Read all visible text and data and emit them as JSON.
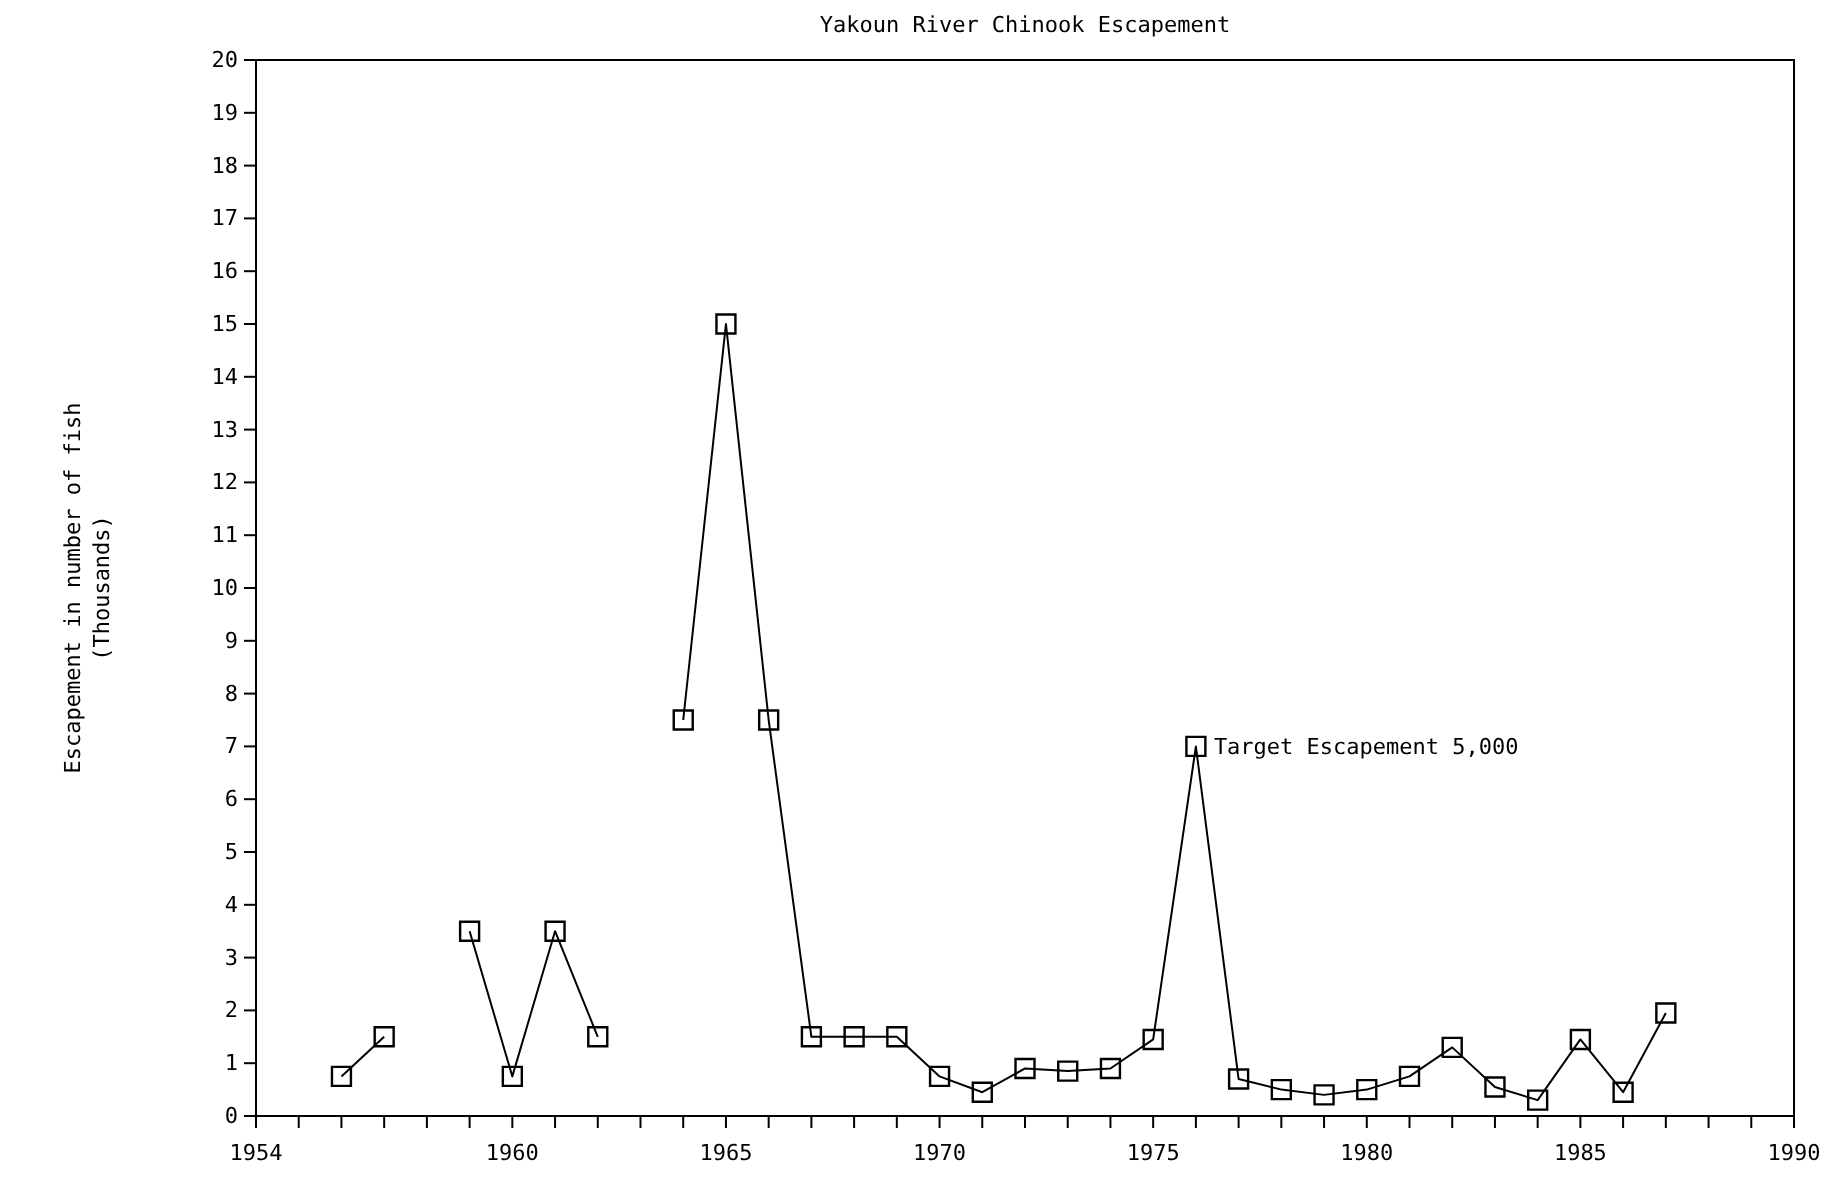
{
  "chart_data": {
    "type": "line",
    "title": "Yakoun River Chinook Escapement",
    "ylabel": "Escapement in number of fish\n(Thousands)",
    "x": [
      1956,
      1957,
      1958,
      1959,
      1960,
      1961,
      1962,
      1963,
      1964,
      1965,
      1966,
      1967,
      1968,
      1969,
      1970,
      1971,
      1972,
      1973,
      1974,
      1975,
      1976,
      1977,
      1978,
      1979,
      1980,
      1981,
      1982,
      1983,
      1984,
      1985,
      1986,
      1987
    ],
    "values": [
      0.75,
      1.5,
      null,
      3.5,
      0.75,
      3.5,
      1.5,
      null,
      7.5,
      15,
      7.5,
      1.5,
      1.5,
      1.5,
      0.75,
      0.45,
      0.9,
      0.85,
      0.9,
      1.45,
      7,
      0.7,
      0.5,
      0.4,
      0.5,
      0.75,
      1.3,
      0.55,
      0.3,
      1.45,
      0.45,
      1.95
    ],
    "color": "#000000",
    "marker": "square",
    "line_style": "solid",
    "grid": false,
    "xlim": [
      1954,
      1990
    ],
    "xticks": [
      1954,
      {
        "value": 1955,
        "label": null
      },
      {
        "value": 1956,
        "label": null
      },
      {
        "value": 1957,
        "label": null
      },
      {
        "value": 1958,
        "label": null
      },
      {
        "value": 1959,
        "label": null
      },
      1960,
      {
        "value": 1961,
        "label": null
      },
      {
        "value": 1962,
        "label": null
      },
      {
        "value": 1963,
        "label": null
      },
      {
        "value": 1964,
        "label": null
      },
      1965,
      {
        "value": 1966,
        "label": null
      },
      {
        "value": 1967,
        "label": null
      },
      {
        "value": 1968,
        "label": null
      },
      {
        "value": 1969,
        "label": null
      },
      1970,
      {
        "value": 1971,
        "label": null
      },
      {
        "value": 1972,
        "label": null
      },
      {
        "value": 1973,
        "label": null
      },
      {
        "value": 1974,
        "label": null
      },
      1975,
      {
        "value": 1976,
        "label": null
      },
      {
        "value": 1977,
        "label": null
      },
      {
        "value": 1978,
        "label": null
      },
      {
        "value": 1979,
        "label": null
      },
      1980,
      {
        "value": 1981,
        "label": null
      },
      {
        "value": 1982,
        "label": null
      },
      {
        "value": 1983,
        "label": null
      },
      {
        "value": 1984,
        "label": null
      },
      1985,
      {
        "value": 1986,
        "label": null
      },
      {
        "value": 1987,
        "label": null
      },
      {
        "value": 1988,
        "label": null
      },
      {
        "value": 1989,
        "label": null
      },
      1990
    ],
    "ylim": [
      0,
      20
    ],
    "yticks": [
      0,
      1,
      2,
      3,
      4,
      5,
      6,
      7,
      8,
      9,
      10,
      11,
      12,
      13,
      14,
      15,
      16,
      17,
      18,
      19,
      20
    ],
    "annotations": [
      {
        "text": "Target Escapement 5,000",
        "x": 1976,
        "y": 7
      }
    ]
  }
}
